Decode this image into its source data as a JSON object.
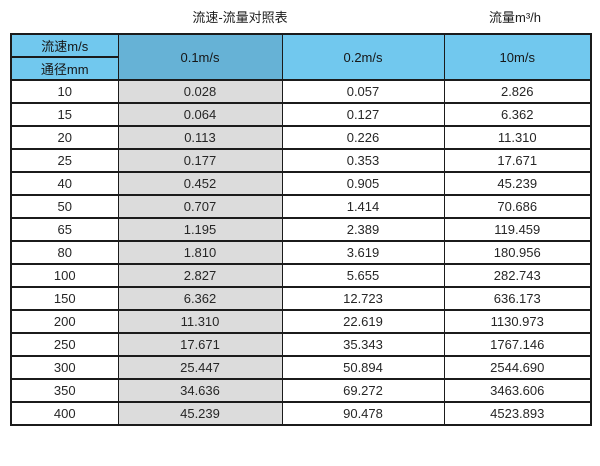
{
  "titles": {
    "table_title": "流速-流量对照表",
    "flow_unit": "流量m³/h"
  },
  "colors": {
    "header_blue": "#71c8ee",
    "header_dark_blue": "#66b2d6",
    "highlight_column_gray": "#dcdcdc",
    "border": "#1b1b1b",
    "text": "#262626",
    "background": "#ffffff"
  },
  "chart_data": {
    "type": "table",
    "title": "流速-流量对照表",
    "unit_label": "流量m³/h",
    "corner_headers": {
      "top": "流速m/s",
      "bottom": "通径mm"
    },
    "velocity_columns": [
      "0.1m/s",
      "0.2m/s",
      "10m/s"
    ],
    "diameter_column_label": "通径mm",
    "rows": [
      {
        "diameter_mm": "10",
        "values": [
          "0.028",
          "0.057",
          "2.826"
        ]
      },
      {
        "diameter_mm": "15",
        "values": [
          "0.064",
          "0.127",
          "6.362"
        ]
      },
      {
        "diameter_mm": "20",
        "values": [
          "0.113",
          "0.226",
          "11.310"
        ]
      },
      {
        "diameter_mm": "25",
        "values": [
          "0.177",
          "0.353",
          "17.671"
        ]
      },
      {
        "diameter_mm": "40",
        "values": [
          "0.452",
          "0.905",
          "45.239"
        ]
      },
      {
        "diameter_mm": "50",
        "values": [
          "0.707",
          "1.414",
          "70.686"
        ]
      },
      {
        "diameter_mm": "65",
        "values": [
          "1.195",
          "2.389",
          "119.459"
        ]
      },
      {
        "diameter_mm": "80",
        "values": [
          "1.810",
          "3.619",
          "180.956"
        ]
      },
      {
        "diameter_mm": "100",
        "values": [
          "2.827",
          "5.655",
          "282.743"
        ]
      },
      {
        "diameter_mm": "150",
        "values": [
          "6.362",
          "12.723",
          "636.173"
        ]
      },
      {
        "diameter_mm": "200",
        "values": [
          "11.310",
          "22.619",
          "1130.973"
        ]
      },
      {
        "diameter_mm": "250",
        "values": [
          "17.671",
          "35.343",
          "1767.146"
        ]
      },
      {
        "diameter_mm": "300",
        "values": [
          "25.447",
          "50.894",
          "2544.690"
        ]
      },
      {
        "diameter_mm": "350",
        "values": [
          "34.636",
          "69.272",
          "3463.606"
        ]
      },
      {
        "diameter_mm": "400",
        "values": [
          "45.239",
          "90.478",
          "4523.893"
        ]
      }
    ]
  }
}
